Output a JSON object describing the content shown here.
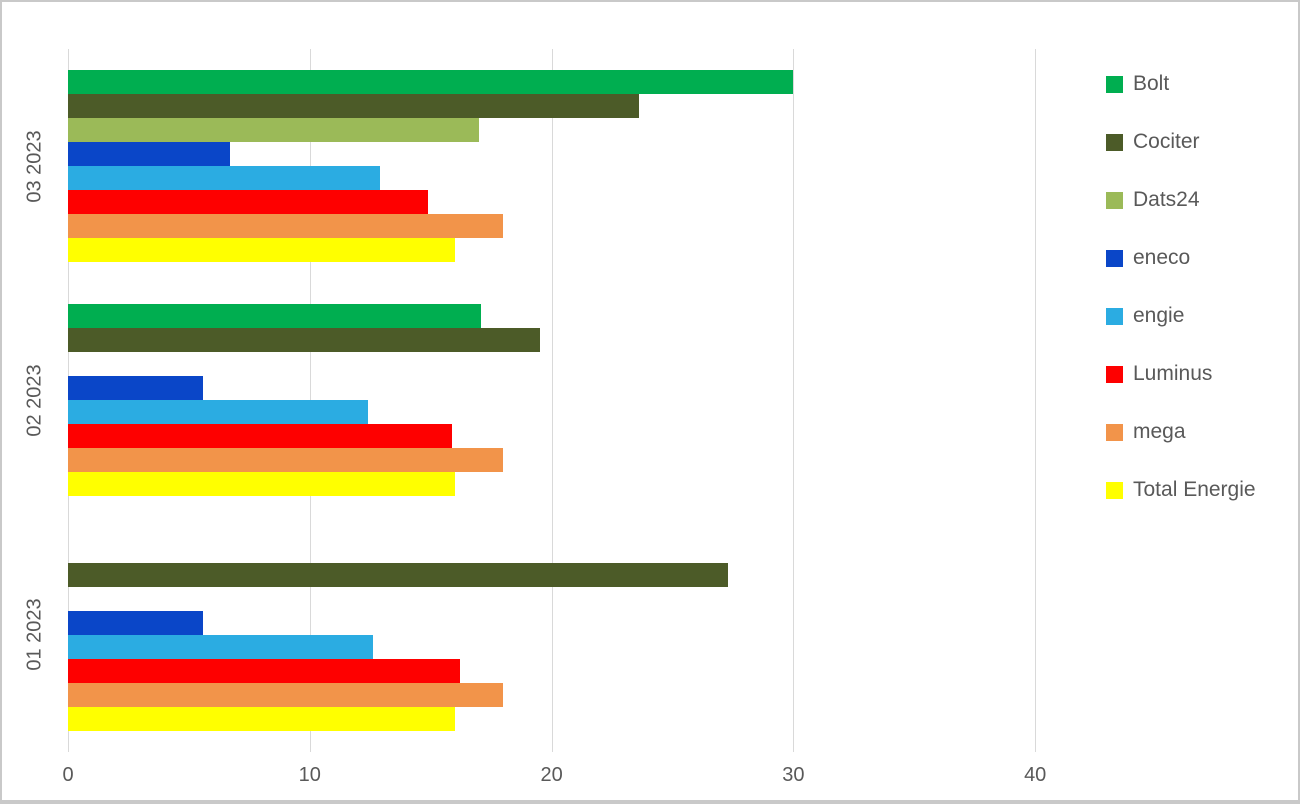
{
  "chart_data": {
    "type": "bar",
    "orientation": "horizontal",
    "title": "",
    "xlabel": "",
    "ylabel": "",
    "grid": true,
    "legend_position": "right",
    "categories": [
      "03 2023",
      "02 2023",
      "01 2023"
    ],
    "series": [
      {
        "name": "Bolt",
        "color": "#00AE50",
        "values": [
          30.0,
          17.1,
          0
        ]
      },
      {
        "name": "Cociter",
        "color": "#4C5B28",
        "values": [
          23.6,
          19.5,
          27.3
        ]
      },
      {
        "name": "Dats24",
        "color": "#9BBA58",
        "values": [
          17.0,
          0,
          0
        ]
      },
      {
        "name": "eneco",
        "color": "#0A46C8",
        "values": [
          6.7,
          5.6,
          5.6
        ]
      },
      {
        "name": "engie",
        "color": "#2BACE2",
        "values": [
          12.9,
          12.4,
          12.6
        ]
      },
      {
        "name": "Luminus",
        "color": "#FE0000",
        "values": [
          14.9,
          15.9,
          16.2
        ]
      },
      {
        "name": "mega",
        "color": "#F2944A",
        "values": [
          18.0,
          18.0,
          18.0
        ]
      },
      {
        "name": "Total Energie",
        "color": "#FFFF00",
        "values": [
          16.0,
          16.0,
          16.0
        ]
      }
    ],
    "x_axis": {
      "min": 0,
      "max": 42.2,
      "ticks": [
        0,
        10,
        20,
        30,
        40
      ]
    }
  },
  "style_colors": {
    "gridline": "#d9d9d9",
    "axis_text": "#595959",
    "background": "#ffffff",
    "border": "#c9c9c9"
  }
}
